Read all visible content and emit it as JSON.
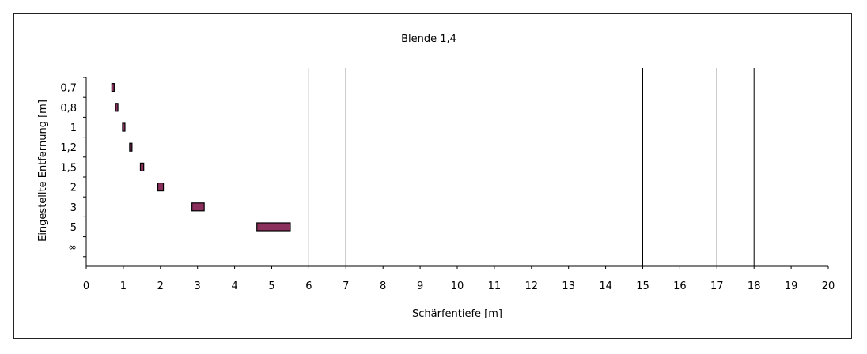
{
  "chart_data": {
    "type": "bar",
    "orientation": "horizontal-range",
    "title": "Blende 1,4",
    "xlabel": "Schärfentiefe [m]",
    "ylabel": "Eingestellte Entfernung [m]",
    "xlim": [
      0,
      20
    ],
    "xticks": [
      0,
      1,
      2,
      3,
      4,
      5,
      6,
      7,
      8,
      9,
      10,
      11,
      12,
      13,
      14,
      15,
      16,
      17,
      18,
      19,
      20
    ],
    "categories": [
      "0,7",
      "0,8",
      "1",
      "1,2",
      "1,5",
      "2",
      "3",
      "5",
      "∞"
    ],
    "ranges": [
      {
        "category": "0,7",
        "start": 0.69,
        "end": 0.71
      },
      {
        "category": "0,8",
        "start": 0.79,
        "end": 0.81
      },
      {
        "category": "1",
        "start": 0.98,
        "end": 1.02
      },
      {
        "category": "1,2",
        "start": 1.17,
        "end": 1.23
      },
      {
        "category": "1,5",
        "start": 1.46,
        "end": 1.55
      },
      {
        "category": "2",
        "start": 1.93,
        "end": 2.08
      },
      {
        "category": "3",
        "start": 2.85,
        "end": 3.18
      },
      {
        "category": "5",
        "start": 4.6,
        "end": 5.5
      },
      {
        "category": "∞",
        "start": null,
        "end": null
      }
    ],
    "reference_lines": [
      6,
      7,
      15,
      17,
      18
    ],
    "grid": false,
    "legend": "none",
    "colors": {
      "bar_fill": "#8b2f5c",
      "bar_stroke": "#000000",
      "axis": "#000000"
    }
  }
}
